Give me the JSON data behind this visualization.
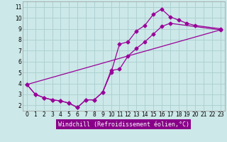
{
  "title": "",
  "xlabel": "Windchill (Refroidissement éolien,°C)",
  "bg_color": "#cce8e8",
  "grid_color": "#aacece",
  "line_color": "#990099",
  "xlim": [
    -0.5,
    23.5
  ],
  "ylim": [
    1.5,
    11.5
  ],
  "xticks": [
    0,
    1,
    2,
    3,
    4,
    5,
    6,
    7,
    8,
    9,
    10,
    11,
    12,
    13,
    14,
    15,
    16,
    17,
    18,
    19,
    20,
    21,
    22,
    23
  ],
  "yticks": [
    2,
    3,
    4,
    5,
    6,
    7,
    8,
    9,
    10,
    11
  ],
  "line1_x": [
    0,
    1,
    2,
    3,
    4,
    5,
    6,
    7,
    8,
    9,
    10,
    11,
    12,
    13,
    14,
    15,
    16,
    17,
    18,
    19,
    20,
    23
  ],
  "line1_y": [
    3.9,
    3.0,
    2.7,
    2.5,
    2.4,
    2.2,
    1.8,
    2.5,
    2.5,
    3.2,
    5.0,
    7.6,
    7.8,
    8.8,
    9.3,
    10.3,
    10.8,
    10.1,
    9.8,
    9.5,
    9.3,
    9.0
  ],
  "line2_x": [
    0,
    1,
    2,
    3,
    4,
    5,
    6,
    7,
    8,
    9,
    10,
    11,
    12,
    13,
    14,
    15,
    16,
    17,
    23
  ],
  "line2_y": [
    3.9,
    3.0,
    2.7,
    2.5,
    2.4,
    2.2,
    1.8,
    2.5,
    2.5,
    3.2,
    5.2,
    5.3,
    6.5,
    7.2,
    7.8,
    8.5,
    9.2,
    9.5,
    8.9
  ],
  "line3_x": [
    0,
    23
  ],
  "line3_y": [
    3.9,
    8.9
  ],
  "markersize": 2.5,
  "linewidth": 0.9,
  "xlabel_bg": "#880088",
  "xlabel_fg": "#ffffff",
  "xlabel_fontsize": 6.0,
  "tick_fontsize": 5.5,
  "spine_color": "#999999"
}
